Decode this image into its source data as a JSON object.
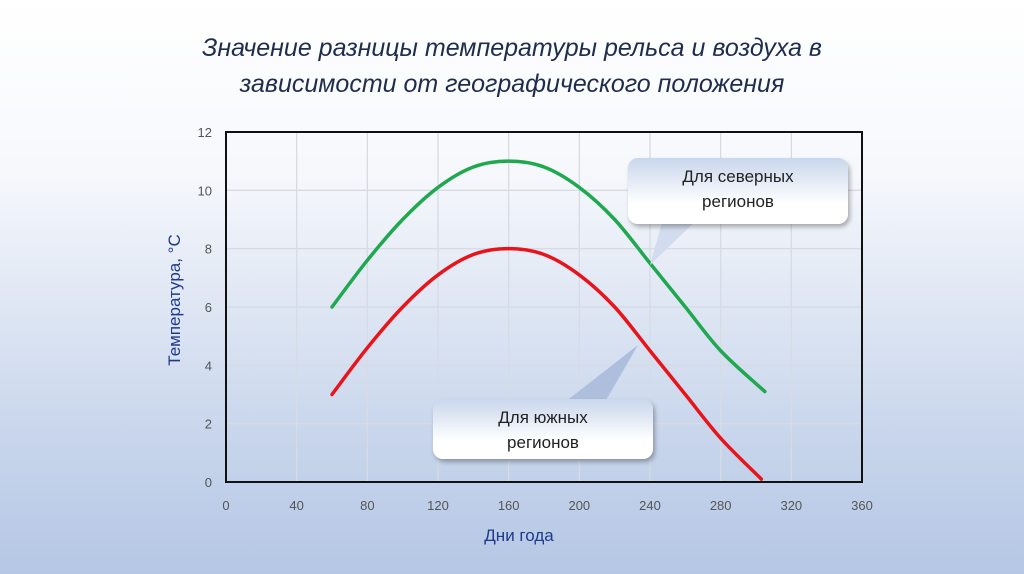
{
  "chart_data": {
    "type": "line",
    "title": "Значение разницы температуры рельса и воздуха в зависимости от географического положения",
    "title_lines": [
      "Значение разницы температуры рельса и воздуха в",
      "зависимости от географического положения"
    ],
    "xlabel": "Дни года",
    "ylabel": "Температура, °С",
    "xlim": [
      0,
      360
    ],
    "ylim": [
      0,
      12
    ],
    "xticks": [
      0,
      40,
      80,
      120,
      160,
      200,
      240,
      280,
      320,
      360
    ],
    "yticks": [
      0,
      2,
      4,
      6,
      8,
      10,
      12
    ],
    "grid": true,
    "series": [
      {
        "name": "Для северных регионов",
        "color": "#1fa84f",
        "x": [
          60,
          80,
          100,
          120,
          140,
          160,
          180,
          200,
          220,
          240,
          260,
          280,
          305
        ],
        "y": [
          6,
          7.6,
          9,
          10.1,
          10.8,
          11,
          10.8,
          10.1,
          9,
          7.5,
          6,
          4.5,
          3.1
        ]
      },
      {
        "name": "Для южных регионов",
        "color": "#e8141b",
        "x": [
          60,
          80,
          100,
          120,
          140,
          160,
          180,
          200,
          220,
          240,
          260,
          280,
          303
        ],
        "y": [
          3,
          4.6,
          6,
          7.1,
          7.8,
          8,
          7.8,
          7.1,
          6,
          4.5,
          3,
          1.5,
          0.1
        ]
      }
    ],
    "annotations": [
      {
        "line1": "Для северных",
        "line2": "регионов"
      },
      {
        "line1": "Для южных",
        "line2": "регионов"
      }
    ]
  }
}
